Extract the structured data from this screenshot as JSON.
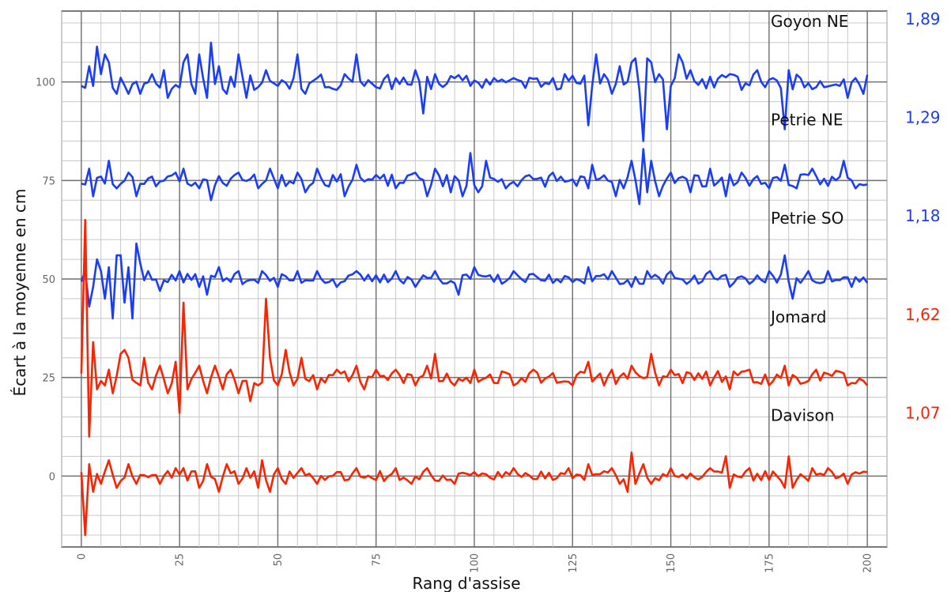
{
  "chart_data": {
    "type": "line",
    "title": "",
    "xlabel": "Rang d'assise",
    "ylabel": "Écart à la moyenne en cm",
    "xlim": [
      -5,
      205
    ],
    "ylim": [
      -18,
      118
    ],
    "x_ticks": [
      0,
      25,
      50,
      75,
      100,
      125,
      150,
      175,
      200
    ],
    "x_tick_labels": [
      "0",
      "25",
      "50",
      "75",
      "100",
      "125",
      "150",
      "175",
      "200"
    ],
    "y_ticks": [
      0,
      25,
      50,
      75,
      100
    ],
    "y_tick_labels": [
      "0",
      "25",
      "50",
      "75",
      "100"
    ],
    "grid": true,
    "minor_grid_step": 5,
    "x_count": 201,
    "colors": {
      "blue": "#1a3cff",
      "red": "#ff2200"
    },
    "series": [
      {
        "name": "Goyon NE",
        "value_label": "1,89",
        "color": "#1a3cff",
        "baseline": 100,
        "amp": 1.9,
        "seed": 11,
        "spikes": [
          [
            1,
            -1.5
          ],
          [
            2,
            4
          ],
          [
            3,
            -1
          ],
          [
            4,
            9
          ],
          [
            5,
            2
          ],
          [
            6,
            7
          ],
          [
            7,
            5
          ],
          [
            9,
            -3
          ],
          [
            12,
            -3
          ],
          [
            15,
            -3
          ],
          [
            18,
            2
          ],
          [
            21,
            3
          ],
          [
            22,
            -4
          ],
          [
            26,
            5
          ],
          [
            27,
            7
          ],
          [
            29,
            -3
          ],
          [
            30,
            7
          ],
          [
            32,
            -4
          ],
          [
            33,
            10
          ],
          [
            35,
            4
          ],
          [
            37,
            -3
          ],
          [
            40,
            7
          ],
          [
            42,
            -4
          ],
          [
            44,
            -2
          ],
          [
            47,
            3
          ],
          [
            50,
            -1
          ],
          [
            55,
            7
          ],
          [
            57,
            -3
          ],
          [
            60,
            1
          ],
          [
            65,
            -2
          ],
          [
            67,
            2
          ],
          [
            70,
            7
          ],
          [
            72,
            -1
          ],
          [
            80,
            1
          ],
          [
            85,
            3
          ],
          [
            87,
            -8
          ],
          [
            90,
            2
          ],
          [
            95,
            1
          ],
          [
            99,
            -1
          ],
          [
            105,
            1
          ],
          [
            110,
            1
          ],
          [
            120,
            1
          ],
          [
            123,
            2
          ],
          [
            129,
            -11
          ],
          [
            130,
            -1
          ],
          [
            131,
            7
          ],
          [
            133,
            2
          ],
          [
            135,
            -3
          ],
          [
            137,
            4
          ],
          [
            140,
            5
          ],
          [
            141,
            6
          ],
          [
            142,
            -2
          ],
          [
            143,
            -15
          ],
          [
            144,
            6
          ],
          [
            145,
            5
          ],
          [
            147,
            2
          ],
          [
            149,
            -12
          ],
          [
            150,
            -1
          ],
          [
            152,
            7
          ],
          [
            153,
            5
          ],
          [
            155,
            3
          ],
          [
            165,
            2
          ],
          [
            168,
            -2
          ],
          [
            172,
            3
          ],
          [
            176,
            1
          ],
          [
            179,
            -12
          ],
          [
            180,
            3
          ],
          [
            183,
            1
          ],
          [
            193,
            -1
          ],
          [
            195,
            -4
          ],
          [
            197,
            1
          ],
          [
            199,
            -3
          ]
        ]
      },
      {
        "name": "Petrie NE",
        "value_label": "1,29",
        "color": "#1a3cff",
        "baseline": 75,
        "amp": 1.6,
        "seed": 23,
        "spikes": [
          [
            1,
            -1
          ],
          [
            2,
            3
          ],
          [
            3,
            -4
          ],
          [
            7,
            5
          ],
          [
            9,
            -2
          ],
          [
            12,
            2
          ],
          [
            14,
            -4
          ],
          [
            18,
            1
          ],
          [
            24,
            2
          ],
          [
            26,
            3
          ],
          [
            30,
            -2
          ],
          [
            33,
            -5
          ],
          [
            40,
            2
          ],
          [
            45,
            -2
          ],
          [
            48,
            3
          ],
          [
            50,
            -2
          ],
          [
            55,
            2
          ],
          [
            57,
            -3
          ],
          [
            60,
            3
          ],
          [
            67,
            -4
          ],
          [
            70,
            4
          ],
          [
            80,
            -2
          ],
          [
            85,
            2
          ],
          [
            88,
            -4
          ],
          [
            90,
            3
          ],
          [
            94,
            -3
          ],
          [
            97,
            -4
          ],
          [
            99,
            7
          ],
          [
            101,
            -3
          ],
          [
            103,
            5
          ],
          [
            108,
            -2
          ],
          [
            120,
            2
          ],
          [
            129,
            -2
          ],
          [
            130,
            4
          ],
          [
            136,
            -4
          ],
          [
            138,
            -2
          ],
          [
            140,
            5
          ],
          [
            142,
            -6
          ],
          [
            143,
            8
          ],
          [
            144,
            -3
          ],
          [
            145,
            5
          ],
          [
            147,
            -4
          ],
          [
            150,
            2
          ],
          [
            155,
            -3
          ],
          [
            160,
            3
          ],
          [
            164,
            -4
          ],
          [
            168,
            2
          ],
          [
            175,
            -2
          ],
          [
            179,
            4
          ],
          [
            182,
            -2
          ],
          [
            186,
            3
          ],
          [
            194,
            5
          ],
          [
            197,
            -2
          ],
          [
            200,
            -1
          ]
        ]
      },
      {
        "name": "Petrie SO",
        "value_label": "1,18",
        "color": "#1a3cff",
        "baseline": 50,
        "amp": 1.3,
        "seed": 37,
        "spikes": [
          [
            1,
            2
          ],
          [
            2,
            -7
          ],
          [
            3,
            -2
          ],
          [
            4,
            5
          ],
          [
            5,
            2
          ],
          [
            6,
            -5
          ],
          [
            7,
            3
          ],
          [
            8,
            -10
          ],
          [
            9,
            6
          ],
          [
            10,
            6
          ],
          [
            11,
            -6
          ],
          [
            12,
            3
          ],
          [
            13,
            -10
          ],
          [
            14,
            9
          ],
          [
            15,
            4
          ],
          [
            17,
            2
          ],
          [
            20,
            -3
          ],
          [
            25,
            2
          ],
          [
            30,
            -2
          ],
          [
            32,
            -4
          ],
          [
            35,
            3
          ],
          [
            40,
            2
          ],
          [
            46,
            2
          ],
          [
            50,
            -2
          ],
          [
            55,
            2
          ],
          [
            60,
            2
          ],
          [
            65,
            -2
          ],
          [
            70,
            2
          ],
          [
            80,
            2
          ],
          [
            85,
            -2
          ],
          [
            90,
            2
          ],
          [
            96,
            -4
          ],
          [
            100,
            3
          ],
          [
            110,
            2
          ],
          [
            120,
            -1
          ],
          [
            129,
            3
          ],
          [
            135,
            2
          ],
          [
            140,
            -2
          ],
          [
            144,
            2
          ],
          [
            150,
            2
          ],
          [
            160,
            2
          ],
          [
            165,
            -2
          ],
          [
            175,
            2
          ],
          [
            179,
            6
          ],
          [
            181,
            -5
          ],
          [
            185,
            2
          ],
          [
            190,
            2
          ],
          [
            196,
            -2
          ],
          [
            200,
            -1
          ]
        ]
      },
      {
        "name": "Jomard",
        "value_label": "1,62",
        "color": "#ff2200",
        "baseline": 25,
        "amp": 1.7,
        "seed": 53,
        "spikes": [
          [
            0,
            1
          ],
          [
            1,
            40
          ],
          [
            2,
            -15
          ],
          [
            3,
            9
          ],
          [
            4,
            -3
          ],
          [
            6,
            -2
          ],
          [
            7,
            2
          ],
          [
            8,
            -4
          ],
          [
            10,
            6
          ],
          [
            11,
            7
          ],
          [
            12,
            5
          ],
          [
            15,
            -2
          ],
          [
            16,
            5
          ],
          [
            18,
            -3
          ],
          [
            20,
            3
          ],
          [
            22,
            -4
          ],
          [
            24,
            4
          ],
          [
            25,
            -9
          ],
          [
            26,
            19
          ],
          [
            27,
            -3
          ],
          [
            30,
            3
          ],
          [
            32,
            -4
          ],
          [
            34,
            3
          ],
          [
            36,
            -3
          ],
          [
            38,
            2
          ],
          [
            40,
            -4
          ],
          [
            43,
            -6
          ],
          [
            45,
            -2
          ],
          [
            47,
            20
          ],
          [
            48,
            5
          ],
          [
            50,
            -2
          ],
          [
            52,
            7
          ],
          [
            54,
            -2
          ],
          [
            56,
            5
          ],
          [
            60,
            -3
          ],
          [
            65,
            2
          ],
          [
            70,
            3
          ],
          [
            72,
            -3
          ],
          [
            75,
            2
          ],
          [
            80,
            2
          ],
          [
            85,
            -2
          ],
          [
            88,
            3
          ],
          [
            90,
            6
          ],
          [
            95,
            -2
          ],
          [
            100,
            2
          ],
          [
            110,
            -2
          ],
          [
            115,
            2
          ],
          [
            125,
            -2
          ],
          [
            129,
            4
          ],
          [
            133,
            -2
          ],
          [
            135,
            2
          ],
          [
            140,
            3
          ],
          [
            145,
            6
          ],
          [
            147,
            -2
          ],
          [
            150,
            2
          ],
          [
            160,
            -2
          ],
          [
            165,
            -3
          ],
          [
            170,
            2
          ],
          [
            175,
            -2
          ],
          [
            179,
            3
          ],
          [
            180,
            -2
          ],
          [
            187,
            2
          ],
          [
            195,
            -2
          ],
          [
            200,
            -2
          ]
        ]
      },
      {
        "name": "Davison",
        "value_label": "1,07",
        "color": "#ff2200",
        "baseline": 0,
        "amp": 1.3,
        "seed": 71,
        "spikes": [
          [
            0,
            1
          ],
          [
            1,
            -15
          ],
          [
            2,
            3
          ],
          [
            3,
            -4
          ],
          [
            5,
            -2
          ],
          [
            7,
            4
          ],
          [
            9,
            -3
          ],
          [
            12,
            3
          ],
          [
            14,
            -2
          ],
          [
            20,
            -2
          ],
          [
            24,
            2
          ],
          [
            26,
            2
          ],
          [
            30,
            -3
          ],
          [
            32,
            3
          ],
          [
            35,
            -4
          ],
          [
            37,
            3
          ],
          [
            40,
            -2
          ],
          [
            42,
            2
          ],
          [
            45,
            -3
          ],
          [
            46,
            4
          ],
          [
            48,
            -4
          ],
          [
            50,
            2
          ],
          [
            52,
            -2
          ],
          [
            56,
            2
          ],
          [
            60,
            -2
          ],
          [
            65,
            1
          ],
          [
            70,
            2
          ],
          [
            75,
            -1
          ],
          [
            80,
            2
          ],
          [
            84,
            -2
          ],
          [
            88,
            2
          ],
          [
            95,
            -2
          ],
          [
            100,
            1
          ],
          [
            110,
            2
          ],
          [
            120,
            -1
          ],
          [
            124,
            2
          ],
          [
            129,
            3
          ],
          [
            135,
            2
          ],
          [
            137,
            -2
          ],
          [
            139,
            -4
          ],
          [
            140,
            6
          ],
          [
            141,
            -2
          ],
          [
            143,
            3
          ],
          [
            145,
            -2
          ],
          [
            150,
            2
          ],
          [
            160,
            2
          ],
          [
            164,
            5
          ],
          [
            165,
            -3
          ],
          [
            170,
            2
          ],
          [
            175,
            -1
          ],
          [
            179,
            -3
          ],
          [
            180,
            5
          ],
          [
            181,
            -3
          ],
          [
            186,
            2
          ],
          [
            190,
            2
          ],
          [
            195,
            -2
          ],
          [
            200,
            1
          ]
        ]
      }
    ]
  }
}
